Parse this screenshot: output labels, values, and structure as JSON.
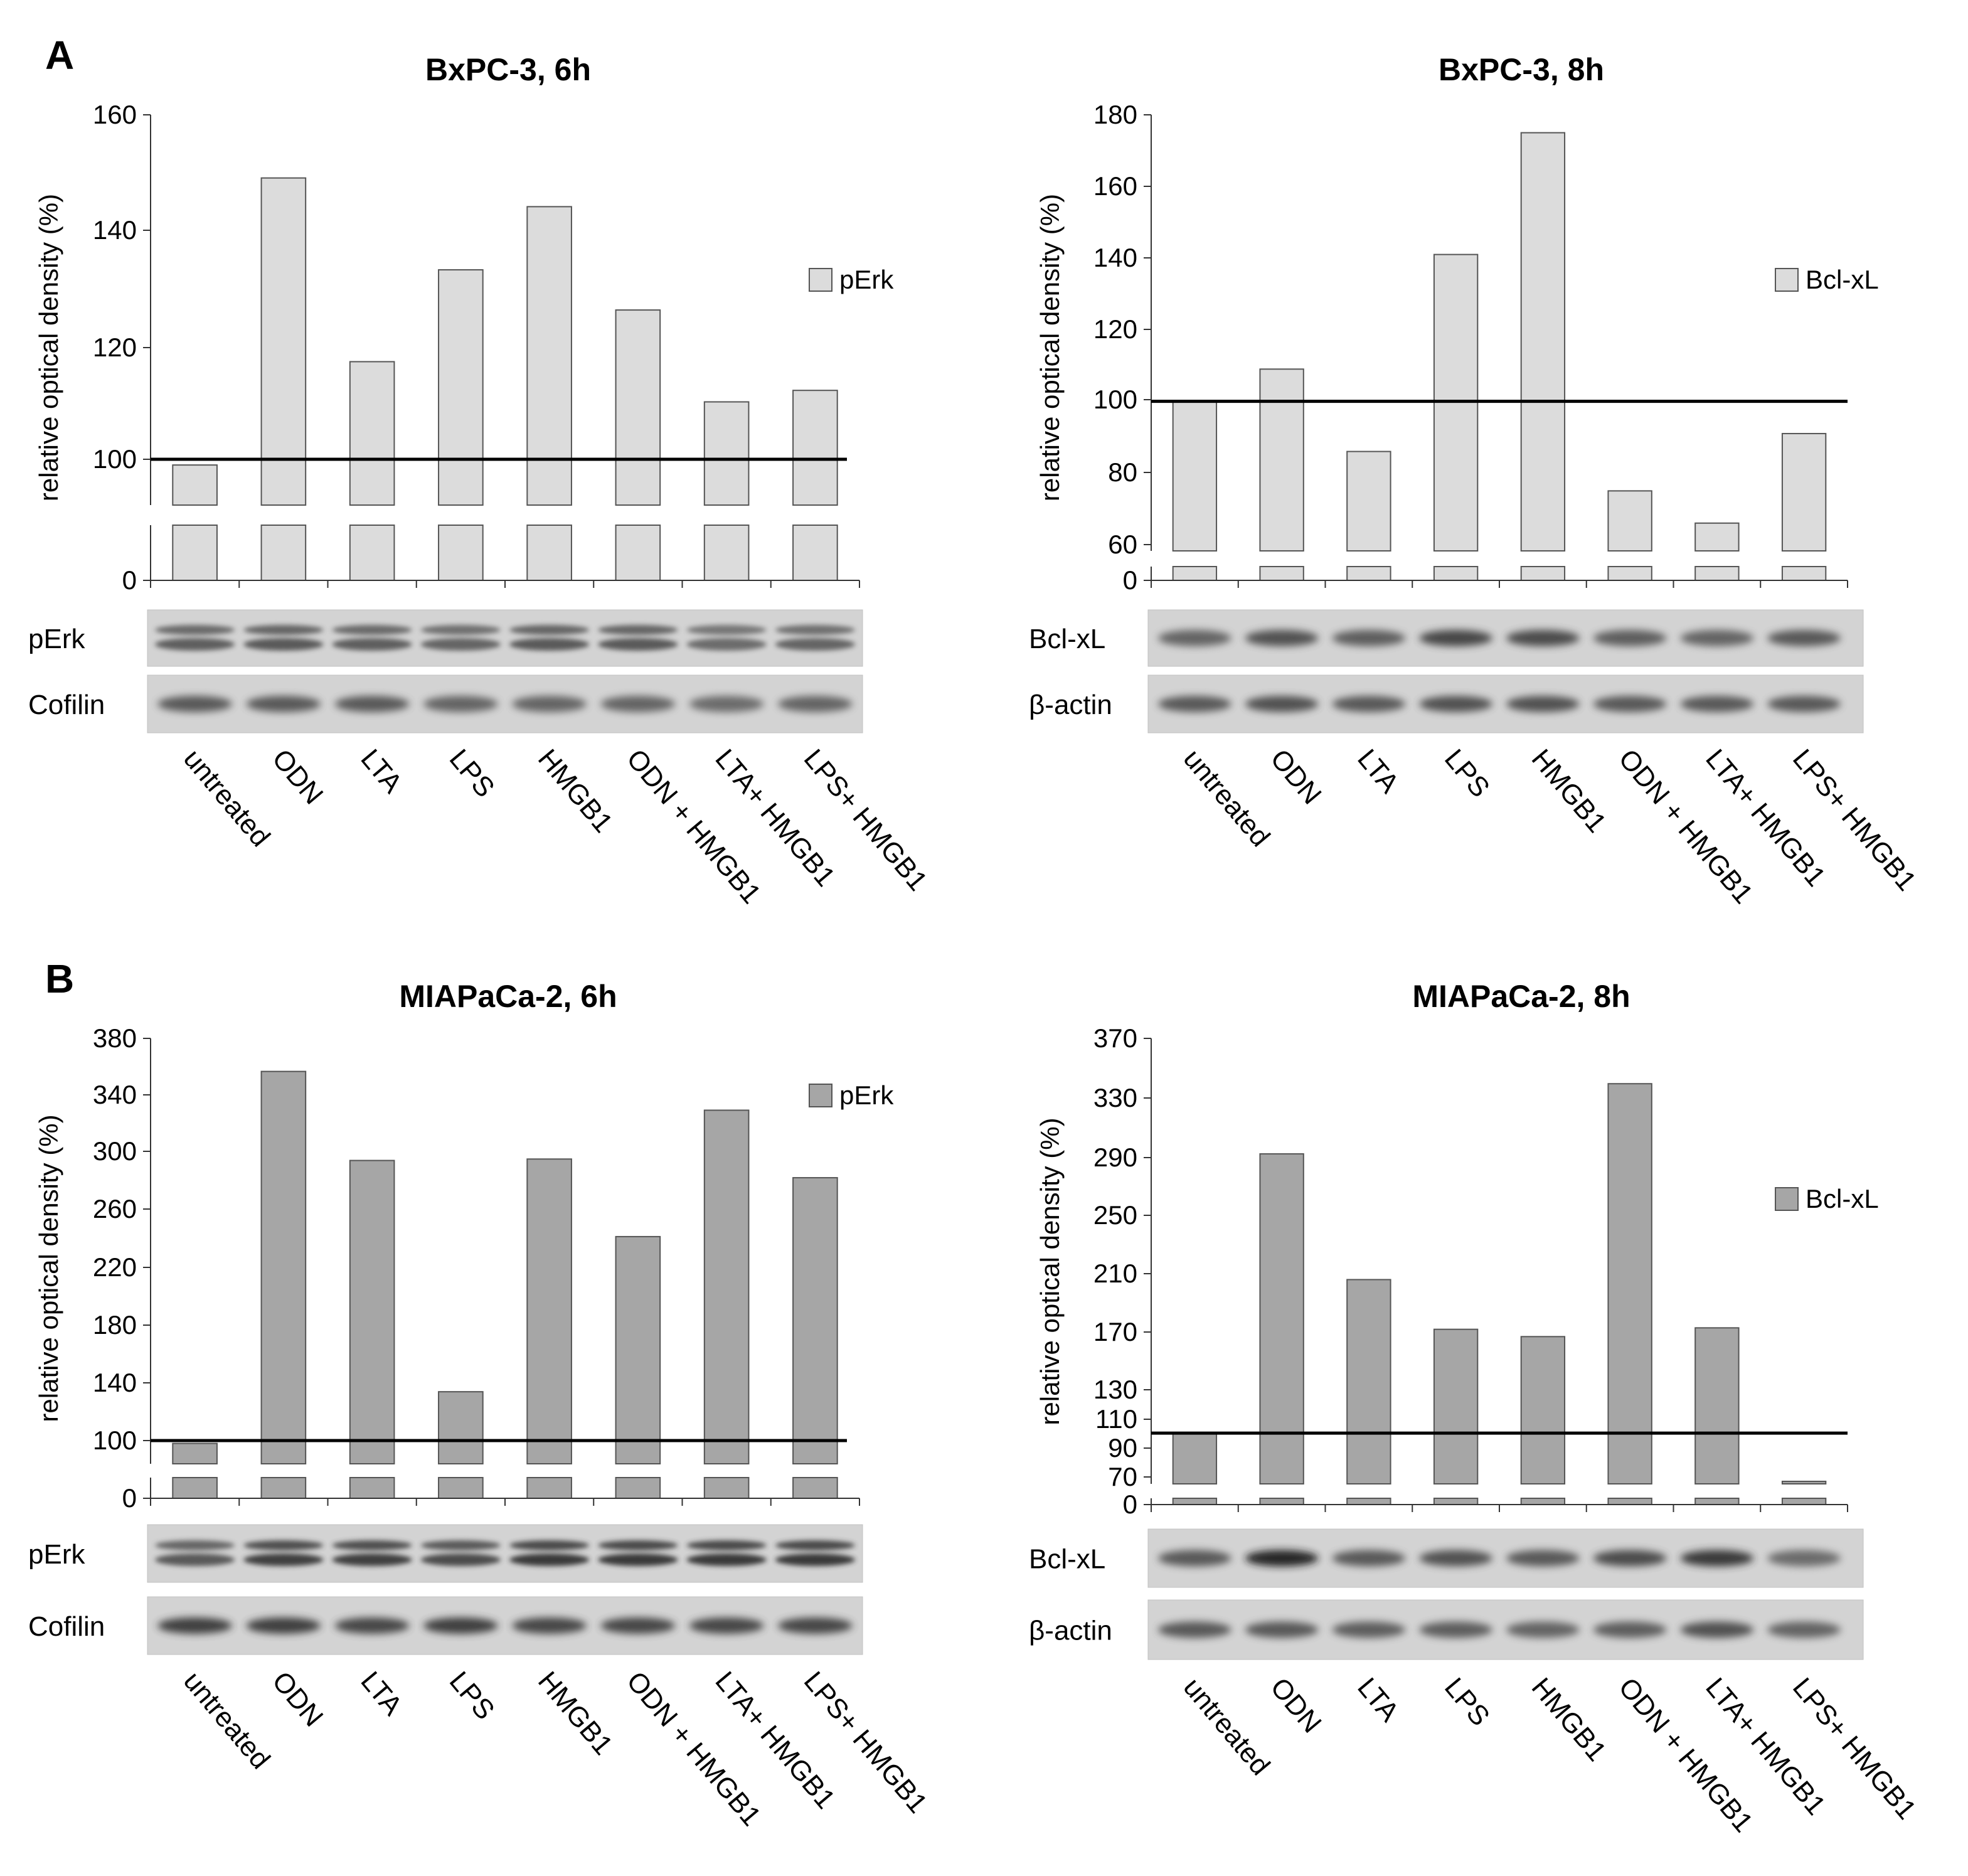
{
  "panels": [
    {
      "letter": "A",
      "letter_color": "#000000"
    },
    {
      "letter": "B",
      "letter_color": "#000000"
    }
  ],
  "colors": {
    "light_bar": "#dcdcdc",
    "dark_bar": "#a6a6a6",
    "outline": "#555555"
  },
  "chart_data": [
    {
      "type": "bar",
      "title": "BxPC-3, 6h",
      "ylabel": "relative optical density (%)",
      "categories": [
        "untreated",
        "ODN",
        "LTA",
        "LPS",
        "HMGB1",
        "ODN + HMGB1",
        "LTA+ HMGB1",
        "LPS+ HMGB1"
      ],
      "series": [
        {
          "name": "pErk",
          "values": [
            99,
            149,
            117,
            133,
            144,
            126,
            110,
            112
          ]
        }
      ],
      "yticks": [
        "0",
        "100",
        "120",
        "140",
        "160"
      ],
      "axis_break": true,
      "reference_line": 100,
      "ylim": [
        80,
        160
      ],
      "bar_color": "#dcdcdc",
      "blots": [
        "pErk",
        "Cofilin"
      ]
    },
    {
      "type": "bar",
      "title": "BxPC-3, 8h",
      "ylabel": "relative optical density (%)",
      "categories": [
        "untreated",
        "ODN",
        "LTA",
        "LPS",
        "HMGB1",
        "ODN + HMGB1",
        "LTA+ HMGB1",
        "LPS+ HMGB1"
      ],
      "series": [
        {
          "name": "Bcl-xL",
          "values": [
            100,
            109,
            86,
            141,
            175,
            75,
            66,
            91
          ]
        }
      ],
      "yticks": [
        "0",
        "60",
        "80",
        "100",
        "120",
        "140",
        "160",
        "180"
      ],
      "axis_break": true,
      "reference_line": 100,
      "ylim": [
        50,
        180
      ],
      "bar_color": "#dcdcdc",
      "blots": [
        "Bcl-xL",
        "β-actin"
      ]
    },
    {
      "type": "bar",
      "title": "MIAPaCa-2, 6h",
      "ylabel": "relative optical density (%)",
      "categories": [
        "untreated",
        "ODN",
        "LTA",
        "LPS",
        "HMGB1",
        "ODN + HMGB1",
        "LTA+ HMGB1",
        "LPS+ HMGB1"
      ],
      "series": [
        {
          "name": "pErk",
          "values": [
            98,
            357,
            295,
            134,
            296,
            242,
            330,
            283
          ]
        }
      ],
      "yticks": [
        "0",
        "100",
        "140",
        "180",
        "220",
        "260",
        "300",
        "340",
        "380"
      ],
      "axis_break": true,
      "reference_line": 100,
      "ylim": [
        80,
        380
      ],
      "bar_color": "#a6a6a6",
      "blots": [
        "pErk",
        "Cofilin"
      ]
    },
    {
      "type": "bar",
      "title": "MIAPaCa-2, 8h",
      "ylabel": "relative optical density (%)",
      "categories": [
        "untreated",
        "ODN",
        "LTA",
        "LPS",
        "HMGB1",
        "ODN + HMGB1",
        "LTA+ HMGB1",
        "LPS+ HMGB1"
      ],
      "series": [
        {
          "name": "Bcl-xL",
          "values": [
            100,
            291,
            205,
            171,
            166,
            339,
            172,
            67
          ]
        }
      ],
      "yticks": [
        "0",
        "70",
        "90",
        "110",
        "130",
        "170",
        "210",
        "250",
        "290",
        "330",
        "370"
      ],
      "axis_break": true,
      "reference_line": 100,
      "ylim": [
        60,
        370
      ],
      "bar_color": "#a6a6a6",
      "blots": [
        "Bcl-xL",
        "β-actin"
      ]
    }
  ]
}
